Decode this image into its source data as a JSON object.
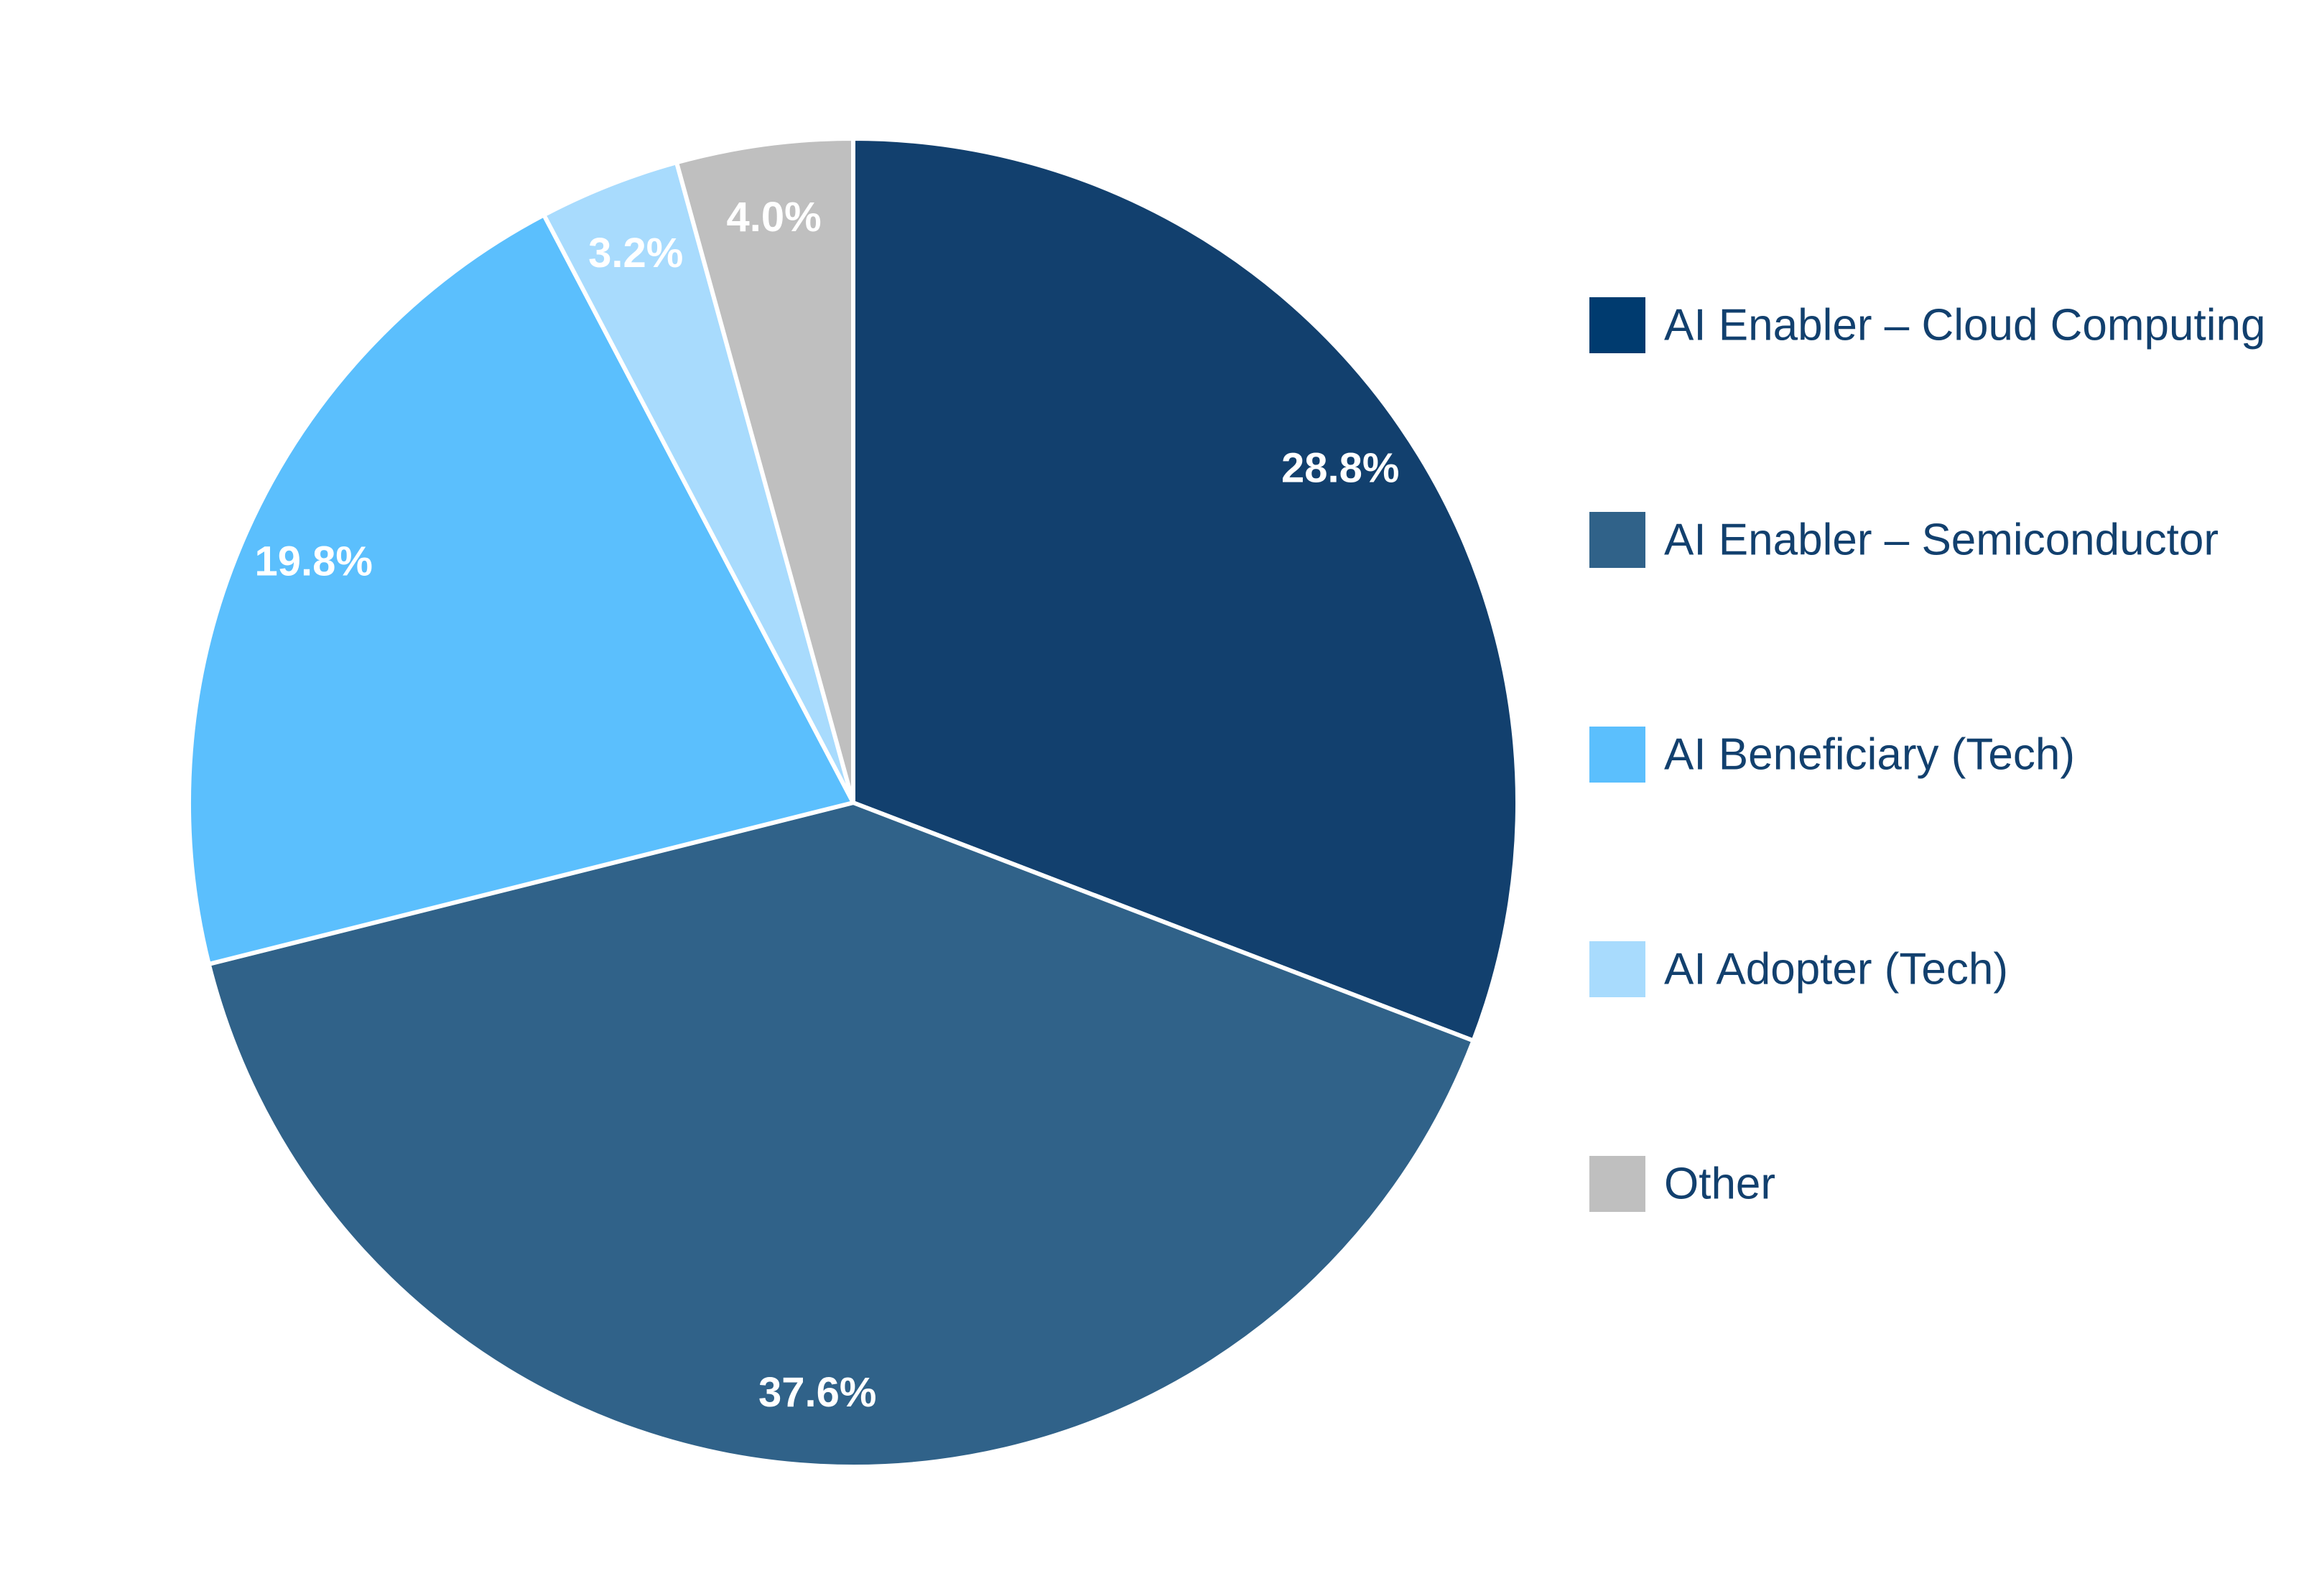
{
  "chart_data": {
    "type": "pie",
    "start": "12 o'clock",
    "direction": "clockwise",
    "legend_position": "right",
    "slices": [
      {
        "name": "AI Enabler – Cloud Computing",
        "value": 28.8,
        "label": "28.8%",
        "color": "#12406e",
        "legend_color": "#003b6f"
      },
      {
        "name": "AI Enabler – Semiconductor",
        "value": 37.6,
        "label": "37.6%",
        "color": "#306289",
        "legend_color": "#306289"
      },
      {
        "name": "AI Beneficiary (Tech)",
        "value": 19.8,
        "label": "19.8%",
        "color": "#5bbffd",
        "legend_color": "#5bbffd"
      },
      {
        "name": "AI Adopter (Tech)",
        "value": 3.2,
        "label": "3.2%",
        "color": "#a8dbfd",
        "legend_color": "#a8dbfd"
      },
      {
        "name": "Other",
        "value": 4.0,
        "label": "4.0%",
        "color": "#bfbfbf",
        "legend_color": "#bfbfbf"
      }
    ]
  }
}
